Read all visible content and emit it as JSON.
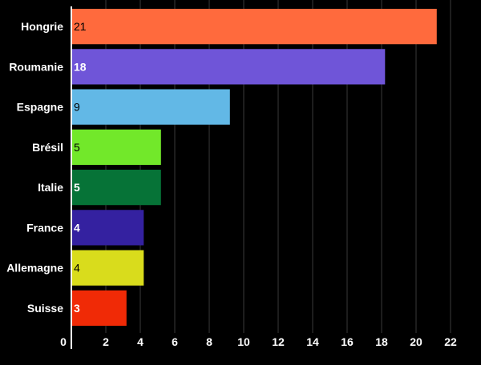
{
  "chart_data": {
    "type": "bar",
    "orientation": "horizontal",
    "categories": [
      "Hongrie",
      "Roumanie",
      "Espagne",
      "Brésil",
      "Italie",
      "France",
      "Allemagne",
      "Suisse"
    ],
    "values": [
      21,
      18,
      9,
      5,
      5,
      4,
      4,
      3
    ],
    "colors": [
      "#ff6a3d",
      "#6f55d8",
      "#62b8e6",
      "#72e82a",
      "#067337",
      "#3421a0",
      "#d9dc1c",
      "#f02a06"
    ],
    "value_label_colors": [
      "#000000",
      "#ffffff",
      "#000000",
      "#000000",
      "#ffffff",
      "#ffffff",
      "#000000",
      "#ffffff"
    ],
    "value_label_bold": [
      false,
      true,
      false,
      false,
      true,
      true,
      false,
      true
    ],
    "xticks": [
      "0",
      "2",
      "4",
      "6",
      "8",
      "10",
      "12",
      "14",
      "16",
      "18",
      "20",
      "22"
    ],
    "xlim": [
      0,
      22
    ],
    "grid": "vertical",
    "background": "#000000"
  }
}
